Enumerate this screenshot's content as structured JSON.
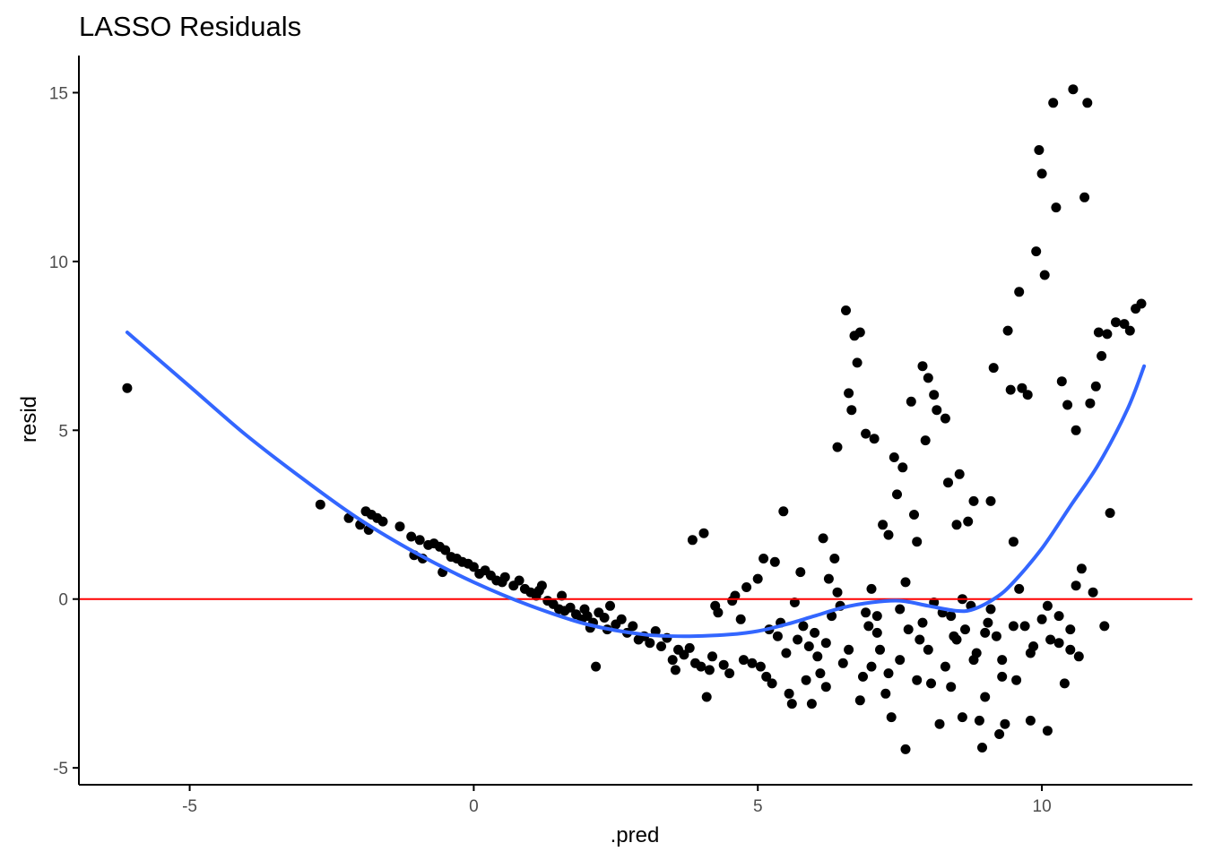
{
  "chart_data": {
    "type": "scatter",
    "title": "LASSO Residuals",
    "xlabel": ".pred",
    "ylabel": "resid",
    "xlim": [
      -6.95,
      12.65
    ],
    "ylim": [
      -5.5,
      16.1
    ],
    "xticks": [
      -5,
      0,
      5,
      10
    ],
    "xtick_labels": [
      "-5",
      "0",
      "5",
      "10"
    ],
    "yticks": [
      -5,
      0,
      5,
      10,
      15
    ],
    "ytick_labels": [
      "-5",
      "0",
      "5",
      "10",
      "15"
    ],
    "grid": false,
    "legend": "none",
    "colors": {
      "points": "#000000",
      "smooth": "#3366FF",
      "reference": "#FF0000",
      "axis": "#000000"
    },
    "reference_line": {
      "y": 0,
      "color": "#FF0000"
    },
    "smooth_curve": {
      "name": "",
      "x": [
        -6.1,
        -5,
        -4,
        -3,
        -2,
        -1,
        0,
        1,
        2,
        3,
        3.8,
        4.5,
        5,
        5.5,
        6,
        6.5,
        7,
        7.5,
        8,
        8.5,
        8.8,
        9.2,
        9.5,
        10,
        10.5,
        11,
        11.5,
        11.8
      ],
      "y": [
        7.9,
        6.3,
        4.85,
        3.55,
        2.35,
        1.35,
        0.5,
        -0.2,
        -0.75,
        -1.05,
        -1.1,
        -1.05,
        -0.95,
        -0.75,
        -0.5,
        -0.25,
        -0.1,
        -0.05,
        -0.2,
        -0.35,
        -0.3,
        0.05,
        0.5,
        1.5,
        2.75,
        4.0,
        5.6,
        6.9
      ]
    },
    "points": [
      [
        -6.1,
        6.25
      ],
      [
        -2.7,
        2.8
      ],
      [
        -2.2,
        2.4
      ],
      [
        -2.0,
        2.2
      ],
      [
        -1.9,
        2.6
      ],
      [
        -1.8,
        2.5
      ],
      [
        -1.7,
        2.4
      ],
      [
        -1.6,
        2.3
      ],
      [
        -1.85,
        2.05
      ],
      [
        -1.3,
        2.15
      ],
      [
        -1.1,
        1.85
      ],
      [
        -1.05,
        1.3
      ],
      [
        -0.95,
        1.75
      ],
      [
        -0.9,
        1.2
      ],
      [
        -0.8,
        1.6
      ],
      [
        -0.7,
        1.65
      ],
      [
        -0.6,
        1.55
      ],
      [
        -0.5,
        1.45
      ],
      [
        -0.55,
        0.8
      ],
      [
        -0.4,
        1.25
      ],
      [
        -0.3,
        1.2
      ],
      [
        -0.2,
        1.1
      ],
      [
        -0.1,
        1.05
      ],
      [
        0.0,
        0.95
      ],
      [
        0.1,
        0.75
      ],
      [
        0.2,
        0.85
      ],
      [
        0.3,
        0.7
      ],
      [
        0.4,
        0.55
      ],
      [
        0.5,
        0.5
      ],
      [
        0.55,
        0.65
      ],
      [
        0.7,
        0.4
      ],
      [
        0.8,
        0.55
      ],
      [
        0.9,
        0.3
      ],
      [
        1.0,
        0.2
      ],
      [
        1.1,
        0.1
      ],
      [
        1.15,
        0.25
      ],
      [
        1.2,
        0.4
      ],
      [
        1.3,
        -0.05
      ],
      [
        1.4,
        -0.15
      ],
      [
        1.5,
        -0.3
      ],
      [
        1.55,
        0.1
      ],
      [
        1.6,
        -0.35
      ],
      [
        1.7,
        -0.25
      ],
      [
        1.8,
        -0.45
      ],
      [
        1.9,
        -0.6
      ],
      [
        1.95,
        -0.3
      ],
      [
        2.0,
        -0.5
      ],
      [
        2.05,
        -0.85
      ],
      [
        2.1,
        -0.7
      ],
      [
        2.15,
        -2.0
      ],
      [
        2.2,
        -0.4
      ],
      [
        2.3,
        -0.55
      ],
      [
        2.35,
        -0.9
      ],
      [
        2.4,
        -0.2
      ],
      [
        2.5,
        -0.75
      ],
      [
        2.6,
        -0.6
      ],
      [
        2.7,
        -1.0
      ],
      [
        2.8,
        -0.8
      ],
      [
        2.9,
        -1.2
      ],
      [
        3.0,
        -1.1
      ],
      [
        3.1,
        -1.3
      ],
      [
        3.2,
        -0.95
      ],
      [
        3.3,
        -1.4
      ],
      [
        3.4,
        -1.15
      ],
      [
        3.5,
        -1.8
      ],
      [
        3.55,
        -2.1
      ],
      [
        3.6,
        -1.5
      ],
      [
        3.7,
        -1.65
      ],
      [
        3.8,
        -1.45
      ],
      [
        3.85,
        1.75
      ],
      [
        3.9,
        -1.9
      ],
      [
        4.0,
        -2.0
      ],
      [
        4.05,
        1.95
      ],
      [
        4.1,
        -2.9
      ],
      [
        4.15,
        -2.1
      ],
      [
        4.2,
        -1.7
      ],
      [
        4.25,
        -0.2
      ],
      [
        4.3,
        -0.4
      ],
      [
        4.4,
        -1.95
      ],
      [
        4.5,
        -2.2
      ],
      [
        4.55,
        -0.05
      ],
      [
        4.6,
        0.1
      ],
      [
        4.7,
        -0.6
      ],
      [
        4.75,
        -1.8
      ],
      [
        4.8,
        0.35
      ],
      [
        4.9,
        -1.9
      ],
      [
        5.0,
        0.6
      ],
      [
        5.05,
        -2.0
      ],
      [
        5.1,
        1.2
      ],
      [
        5.15,
        -2.3
      ],
      [
        5.2,
        -0.9
      ],
      [
        5.25,
        -2.5
      ],
      [
        5.3,
        1.1
      ],
      [
        5.35,
        -1.1
      ],
      [
        5.4,
        -0.7
      ],
      [
        5.45,
        2.6
      ],
      [
        5.5,
        -1.6
      ],
      [
        5.55,
        -2.8
      ],
      [
        5.6,
        -3.1
      ],
      [
        5.65,
        -0.1
      ],
      [
        5.7,
        -1.2
      ],
      [
        5.75,
        0.8
      ],
      [
        5.8,
        -0.8
      ],
      [
        5.85,
        -2.4
      ],
      [
        5.9,
        -1.4
      ],
      [
        5.95,
        -3.1
      ],
      [
        6.0,
        -1.0
      ],
      [
        6.05,
        -1.7
      ],
      [
        6.1,
        -2.2
      ],
      [
        6.15,
        1.8
      ],
      [
        6.2,
        -1.3
      ],
      [
        6.25,
        0.6
      ],
      [
        6.3,
        -0.5
      ],
      [
        6.35,
        1.2
      ],
      [
        6.4,
        4.5
      ],
      [
        6.45,
        -0.2
      ],
      [
        6.5,
        -1.9
      ],
      [
        6.55,
        8.55
      ],
      [
        6.6,
        6.1
      ],
      [
        6.65,
        5.6
      ],
      [
        6.7,
        7.8
      ],
      [
        6.75,
        7.0
      ],
      [
        6.8,
        7.9
      ],
      [
        6.85,
        -2.3
      ],
      [
        6.9,
        4.9
      ],
      [
        6.95,
        -0.8
      ],
      [
        7.0,
        0.3
      ],
      [
        7.05,
        4.75
      ],
      [
        7.1,
        -0.5
      ],
      [
        7.15,
        -1.5
      ],
      [
        7.2,
        2.2
      ],
      [
        7.25,
        -2.8
      ],
      [
        7.3,
        1.9
      ],
      [
        7.35,
        -3.5
      ],
      [
        7.4,
        4.2
      ],
      [
        7.45,
        3.1
      ],
      [
        7.5,
        -0.3
      ],
      [
        7.55,
        3.9
      ],
      [
        7.6,
        -4.45
      ],
      [
        7.65,
        -0.9
      ],
      [
        7.7,
        5.85
      ],
      [
        7.75,
        2.5
      ],
      [
        7.8,
        1.7
      ],
      [
        7.85,
        -1.2
      ],
      [
        7.9,
        6.9
      ],
      [
        7.95,
        4.7
      ],
      [
        8.0,
        6.55
      ],
      [
        8.05,
        -2.5
      ],
      [
        8.1,
        6.05
      ],
      [
        8.15,
        5.6
      ],
      [
        8.2,
        -3.7
      ],
      [
        8.25,
        -0.4
      ],
      [
        8.3,
        5.35
      ],
      [
        8.35,
        3.45
      ],
      [
        8.4,
        -2.6
      ],
      [
        8.45,
        -1.1
      ],
      [
        8.5,
        2.2
      ],
      [
        8.55,
        3.7
      ],
      [
        8.6,
        -3.5
      ],
      [
        8.65,
        -0.9
      ],
      [
        8.7,
        2.3
      ],
      [
        8.75,
        -0.2
      ],
      [
        8.8,
        2.9
      ],
      [
        8.85,
        -1.6
      ],
      [
        8.9,
        -3.6
      ],
      [
        8.95,
        -4.4
      ],
      [
        9.0,
        -2.9
      ],
      [
        9.05,
        -0.7
      ],
      [
        9.1,
        2.9
      ],
      [
        9.15,
        6.85
      ],
      [
        9.2,
        -1.1
      ],
      [
        9.25,
        -4.0
      ],
      [
        9.3,
        -1.8
      ],
      [
        9.35,
        -3.7
      ],
      [
        9.4,
        7.95
      ],
      [
        9.45,
        6.2
      ],
      [
        9.5,
        1.7
      ],
      [
        9.55,
        -2.4
      ],
      [
        9.6,
        9.1
      ],
      [
        9.65,
        6.25
      ],
      [
        9.7,
        -0.8
      ],
      [
        9.75,
        6.05
      ],
      [
        9.8,
        -3.6
      ],
      [
        9.85,
        -1.4
      ],
      [
        9.9,
        10.3
      ],
      [
        9.95,
        13.3
      ],
      [
        10.0,
        12.6
      ],
      [
        10.05,
        9.6
      ],
      [
        10.1,
        -3.9
      ],
      [
        10.15,
        -1.2
      ],
      [
        10.2,
        14.7
      ],
      [
        10.25,
        11.6
      ],
      [
        10.3,
        -0.5
      ],
      [
        10.35,
        6.45
      ],
      [
        10.4,
        -2.5
      ],
      [
        10.45,
        5.75
      ],
      [
        10.5,
        -1.5
      ],
      [
        10.55,
        15.1
      ],
      [
        10.6,
        5.0
      ],
      [
        10.65,
        -1.7
      ],
      [
        10.7,
        0.9
      ],
      [
        10.75,
        11.9
      ],
      [
        10.8,
        14.7
      ],
      [
        10.85,
        5.8
      ],
      [
        10.9,
        0.2
      ],
      [
        10.95,
        6.3
      ],
      [
        11.0,
        7.9
      ],
      [
        11.05,
        7.2
      ],
      [
        11.1,
        -0.8
      ],
      [
        11.15,
        7.85
      ],
      [
        11.2,
        2.55
      ],
      [
        11.3,
        8.2
      ],
      [
        11.45,
        8.15
      ],
      [
        11.55,
        7.95
      ],
      [
        11.65,
        8.6
      ],
      [
        11.75,
        8.75
      ],
      [
        6.6,
        -1.5
      ],
      [
        7.0,
        -2.0
      ],
      [
        7.5,
        -1.8
      ],
      [
        8.0,
        -1.5
      ],
      [
        8.5,
        -1.2
      ],
      [
        9.0,
        -1.0
      ],
      [
        9.5,
        -0.8
      ],
      [
        10.0,
        -0.6
      ],
      [
        10.5,
        -0.9
      ],
      [
        6.2,
        -2.6
      ],
      [
        6.8,
        -3.0
      ],
      [
        7.3,
        -2.2
      ],
      [
        7.8,
        -2.4
      ],
      [
        8.3,
        -2.0
      ],
      [
        8.8,
        -1.8
      ],
      [
        9.3,
        -2.3
      ],
      [
        9.8,
        -1.6
      ],
      [
        10.3,
        -1.3
      ],
      [
        6.4,
        0.2
      ],
      [
        6.9,
        -0.4
      ],
      [
        7.6,
        0.5
      ],
      [
        8.1,
        -0.1
      ],
      [
        8.6,
        0.0
      ],
      [
        9.1,
        -0.3
      ],
      [
        9.6,
        0.3
      ],
      [
        10.1,
        -0.2
      ],
      [
        10.6,
        0.4
      ],
      [
        7.1,
        -1.0
      ],
      [
        7.9,
        -0.7
      ],
      [
        8.4,
        -0.5
      ]
    ]
  }
}
